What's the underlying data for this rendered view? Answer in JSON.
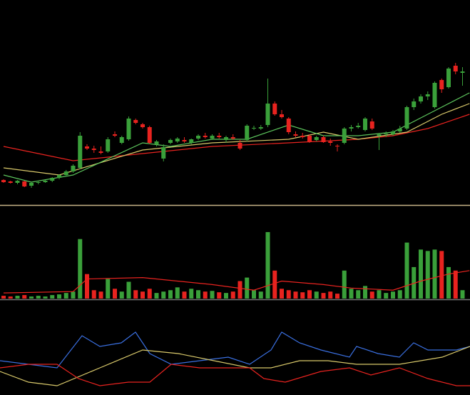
{
  "chart_data": {
    "type": "candlestick",
    "up_color": "#3aa03a",
    "down_color": "#e8231f",
    "ylim": [
      10,
      220
    ],
    "candles": [
      [
        48,
        49,
        44,
        45
      ],
      [
        46,
        47,
        43,
        44
      ],
      [
        44,
        48,
        42,
        47
      ],
      [
        46,
        47,
        38,
        39
      ],
      [
        40,
        45,
        37,
        44
      ],
      [
        44,
        47,
        42,
        45
      ],
      [
        45,
        48,
        44,
        47
      ],
      [
        47,
        52,
        45,
        51
      ],
      [
        51,
        56,
        49,
        55
      ],
      [
        55,
        62,
        53,
        60
      ],
      [
        60,
        70,
        58,
        68
      ],
      [
        65,
        115,
        63,
        110
      ],
      [
        95,
        98,
        90,
        92
      ],
      [
        92,
        96,
        86,
        90
      ],
      [
        88,
        95,
        84,
        86
      ],
      [
        88,
        108,
        86,
        105
      ],
      [
        112,
        116,
        108,
        110
      ],
      [
        100,
        110,
        98,
        108
      ],
      [
        105,
        137,
        103,
        134
      ],
      [
        132,
        134,
        126,
        128
      ],
      [
        126,
        128,
        120,
        122
      ],
      [
        122,
        124,
        98,
        100
      ],
      [
        98,
        104,
        95,
        102
      ],
      [
        78,
        98,
        74,
        94
      ],
      [
        100,
        106,
        98,
        104
      ],
      [
        102,
        108,
        100,
        106
      ],
      [
        104,
        108,
        100,
        102
      ],
      [
        100,
        106,
        98,
        105
      ],
      [
        106,
        112,
        104,
        110
      ],
      [
        110,
        114,
        106,
        108
      ],
      [
        106,
        112,
        104,
        110
      ],
      [
        110,
        114,
        106,
        108
      ],
      [
        104,
        110,
        100,
        108
      ],
      [
        108,
        112,
        104,
        106
      ],
      [
        100,
        104,
        90,
        92
      ],
      [
        104,
        126,
        102,
        124
      ],
      [
        120,
        124,
        118,
        121
      ],
      [
        120,
        125,
        118,
        122
      ],
      [
        125,
        190,
        122,
        155
      ],
      [
        155,
        158,
        138,
        140
      ],
      [
        140,
        146,
        134,
        136
      ],
      [
        134,
        136,
        112,
        115
      ],
      [
        112,
        116,
        108,
        110
      ],
      [
        110,
        114,
        106,
        108
      ],
      [
        110,
        112,
        100,
        102
      ],
      [
        104,
        110,
        102,
        108
      ],
      [
        108,
        110,
        100,
        101
      ],
      [
        102,
        106,
        96,
        100
      ],
      [
        96,
        98,
        88,
        95
      ],
      [
        100,
        122,
        98,
        120
      ],
      [
        120,
        125,
        116,
        122
      ],
      [
        122,
        128,
        120,
        124
      ],
      [
        118,
        136,
        116,
        134
      ],
      [
        130,
        134,
        118,
        120
      ],
      [
        110,
        114,
        90,
        112
      ],
      [
        112,
        116,
        108,
        113
      ],
      [
        112,
        118,
        110,
        116
      ],
      [
        116,
        124,
        114,
        120
      ],
      [
        120,
        152,
        118,
        150
      ],
      [
        150,
        162,
        146,
        158
      ],
      [
        158,
        168,
        155,
        165
      ],
      [
        165,
        172,
        160,
        168
      ],
      [
        150,
        186,
        148,
        184
      ],
      [
        188,
        190,
        170,
        175
      ],
      [
        178,
        206,
        176,
        204
      ],
      [
        208,
        212,
        196,
        200
      ],
      [
        198,
        206,
        180,
        200
      ]
    ],
    "ma": [
      {
        "color": "#e8231f",
        "x": [
          0,
          5,
          10,
          20,
          30,
          41,
          51,
          56,
          61,
          67
        ],
        "values": [
          95,
          85,
          75,
          85,
          95,
          100,
          105,
          110,
          120,
          140
        ]
      },
      {
        "color": "#d8c86a",
        "x": [
          0,
          8,
          20,
          30,
          41,
          46,
          51,
          58,
          63,
          67
        ],
        "values": [
          65,
          55,
          90,
          100,
          105,
          115,
          105,
          115,
          140,
          155
        ]
      },
      {
        "color": "#5cc45c",
        "x": [
          0,
          4,
          10,
          20,
          24,
          30,
          35,
          41,
          46,
          51,
          56,
          62,
          67
        ],
        "values": [
          55,
          45,
          55,
          100,
          95,
          105,
          105,
          125,
          110,
          110,
          115,
          145,
          170
        ]
      }
    ],
    "volume": {
      "ylim": [
        0,
        100
      ],
      "values": [
        4,
        3,
        4,
        5,
        3,
        4,
        3,
        5,
        6,
        8,
        10,
        85,
        35,
        12,
        10,
        28,
        14,
        10,
        24,
        12,
        10,
        14,
        8,
        10,
        12,
        16,
        10,
        14,
        12,
        10,
        11,
        9,
        8,
        10,
        25,
        30,
        12,
        10,
        95,
        40,
        14,
        12,
        10,
        9,
        12,
        10,
        8,
        10,
        7,
        40,
        14,
        12,
        18,
        10,
        12,
        8,
        10,
        12,
        80,
        45,
        70,
        68,
        70,
        68,
        45,
        40,
        12
      ],
      "ma": {
        "color": "#e8231f",
        "x": [
          0,
          10,
          12,
          20,
          30,
          36,
          40,
          46,
          50,
          56,
          60,
          64,
          67
        ],
        "values": [
          8,
          10,
          28,
          30,
          20,
          12,
          25,
          20,
          15,
          12,
          25,
          35,
          40
        ]
      }
    },
    "indicator": {
      "xlim": [
        0,
        659
      ],
      "ylim": [
        0,
        110
      ],
      "series": [
        {
          "color": "#3a6fe0",
          "x": [
            0,
            40,
            80,
            115,
            140,
            170,
            190,
            210,
            240,
            280,
            320,
            350,
            380,
            395,
            420,
            450,
            490,
            500,
            530,
            560,
            580,
            600,
            640,
            659
          ],
          "values": [
            40,
            35,
            30,
            75,
            60,
            65,
            80,
            50,
            35,
            40,
            45,
            35,
            55,
            80,
            65,
            55,
            45,
            60,
            50,
            45,
            65,
            55,
            55,
            60
          ]
        },
        {
          "color": "#d8c86a",
          "x": [
            0,
            40,
            80,
            140,
            200,
            250,
            300,
            350,
            380,
            420,
            460,
            500,
            560,
            620,
            659
          ],
          "values": [
            25,
            10,
            5,
            30,
            55,
            50,
            40,
            30,
            30,
            40,
            40,
            35,
            35,
            45,
            60
          ]
        },
        {
          "color": "#e8231f",
          "x": [
            0,
            40,
            80,
            110,
            140,
            180,
            210,
            240,
            280,
            320,
            350,
            370,
            400,
            450,
            490,
            520,
            560,
            600,
            640,
            659
          ],
          "values": [
            30,
            35,
            35,
            15,
            5,
            10,
            10,
            35,
            30,
            30,
            30,
            15,
            10,
            25,
            30,
            20,
            30,
            15,
            5,
            5
          ]
        }
      ]
    }
  }
}
